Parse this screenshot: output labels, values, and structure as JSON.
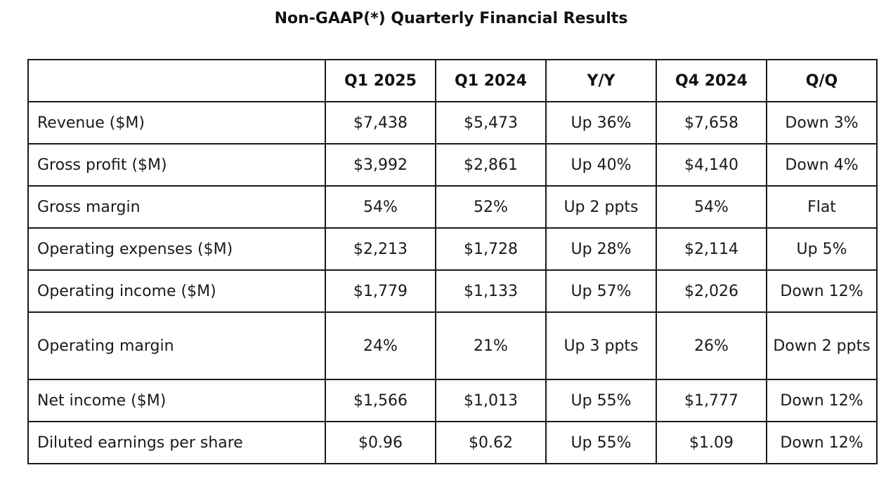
{
  "title": "Non-GAAP(*) Quarterly Financial Results",
  "table": {
    "headers": [
      "",
      "Q1 2025",
      "Q1 2024",
      "Y/Y",
      "Q4 2024",
      "Q/Q"
    ],
    "rows": [
      [
        "Revenue ($M)",
        "$7,438",
        "$5,473",
        "Up 36%",
        "$7,658",
        "Down 3%"
      ],
      [
        "Gross profit ($M)",
        "$3,992",
        "$2,861",
        "Up 40%",
        "$4,140",
        "Down 4%"
      ],
      [
        "Gross margin",
        "54%",
        "52%",
        "Up 2 ppts",
        "54%",
        "Flat"
      ],
      [
        "Operating expenses ($M)",
        "$2,213",
        "$1,728",
        "Up 28%",
        "$2,114",
        "Up 5%"
      ],
      [
        "Operating income ($M)",
        "$1,779",
        "$1,133",
        "Up 57%",
        "$2,026",
        "Down 12%"
      ],
      [
        "Operating margin",
        "24%",
        "21%",
        "Up 3 ppts",
        "26%",
        "Down 2 ppts"
      ],
      [
        "Net income ($M)",
        "$1,566",
        "$1,013",
        "Up 55%",
        "$1,777",
        "Down 12%"
      ],
      [
        "Diluted earnings per share",
        "$0.96",
        "$0.62",
        "Up 55%",
        "$1.09",
        "Down 12%"
      ]
    ]
  }
}
